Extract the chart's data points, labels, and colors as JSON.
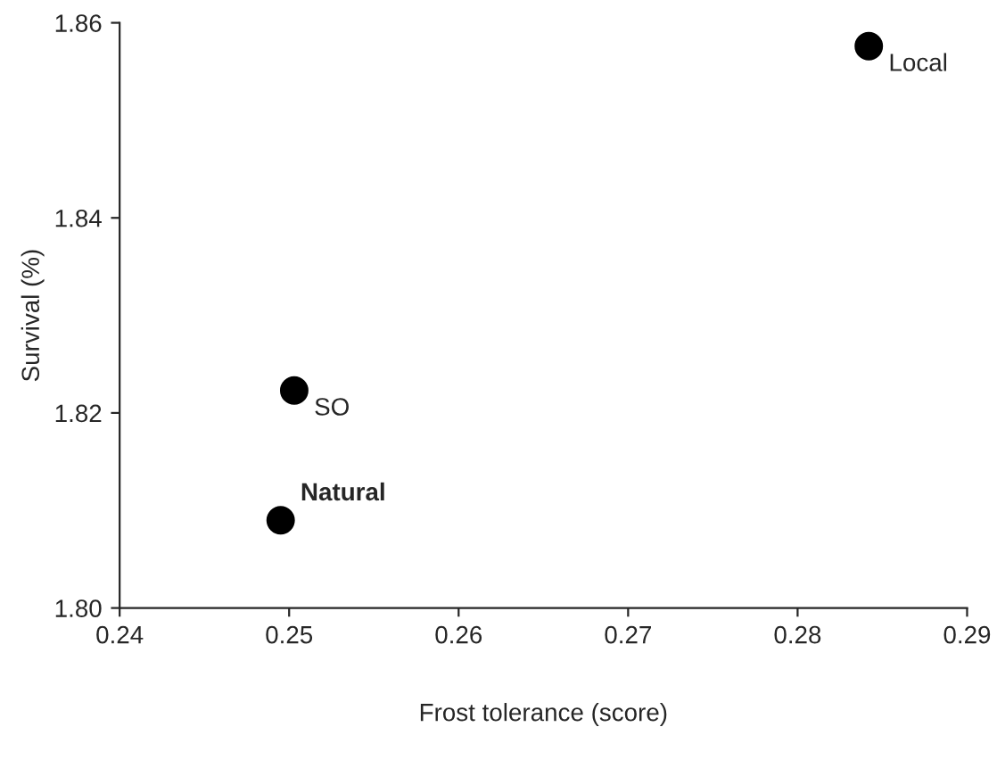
{
  "chart_data": {
    "type": "scatter",
    "xlabel": "Frost tolerance (score)",
    "ylabel": "Survival (%)",
    "x": [
      0.2842,
      0.2503,
      0.2495
    ],
    "series": [
      {
        "color": "#000000",
        "values": [
          1.8576,
          1.8223,
          1.809
        ]
      }
    ],
    "marker": "circle",
    "grid": false,
    "legend": false,
    "xlim": [
      0.24,
      0.29
    ],
    "xticks": [
      0.24,
      0.25,
      0.26,
      0.27,
      0.28,
      0.29
    ],
    "ylim": [
      1.8,
      1.86
    ],
    "yticks": [
      {
        "value": 1.8,
        "label": "1.80"
      },
      1.82,
      1.84,
      1.86
    ],
    "annotations": [
      {
        "text": "Local",
        "x": 0.2842,
        "y": 1.8576
      },
      {
        "text": "SO",
        "x": 0.2503,
        "y": 1.8223
      },
      {
        "text": "Natural",
        "x": 0.2495,
        "y": 1.809
      }
    ]
  }
}
